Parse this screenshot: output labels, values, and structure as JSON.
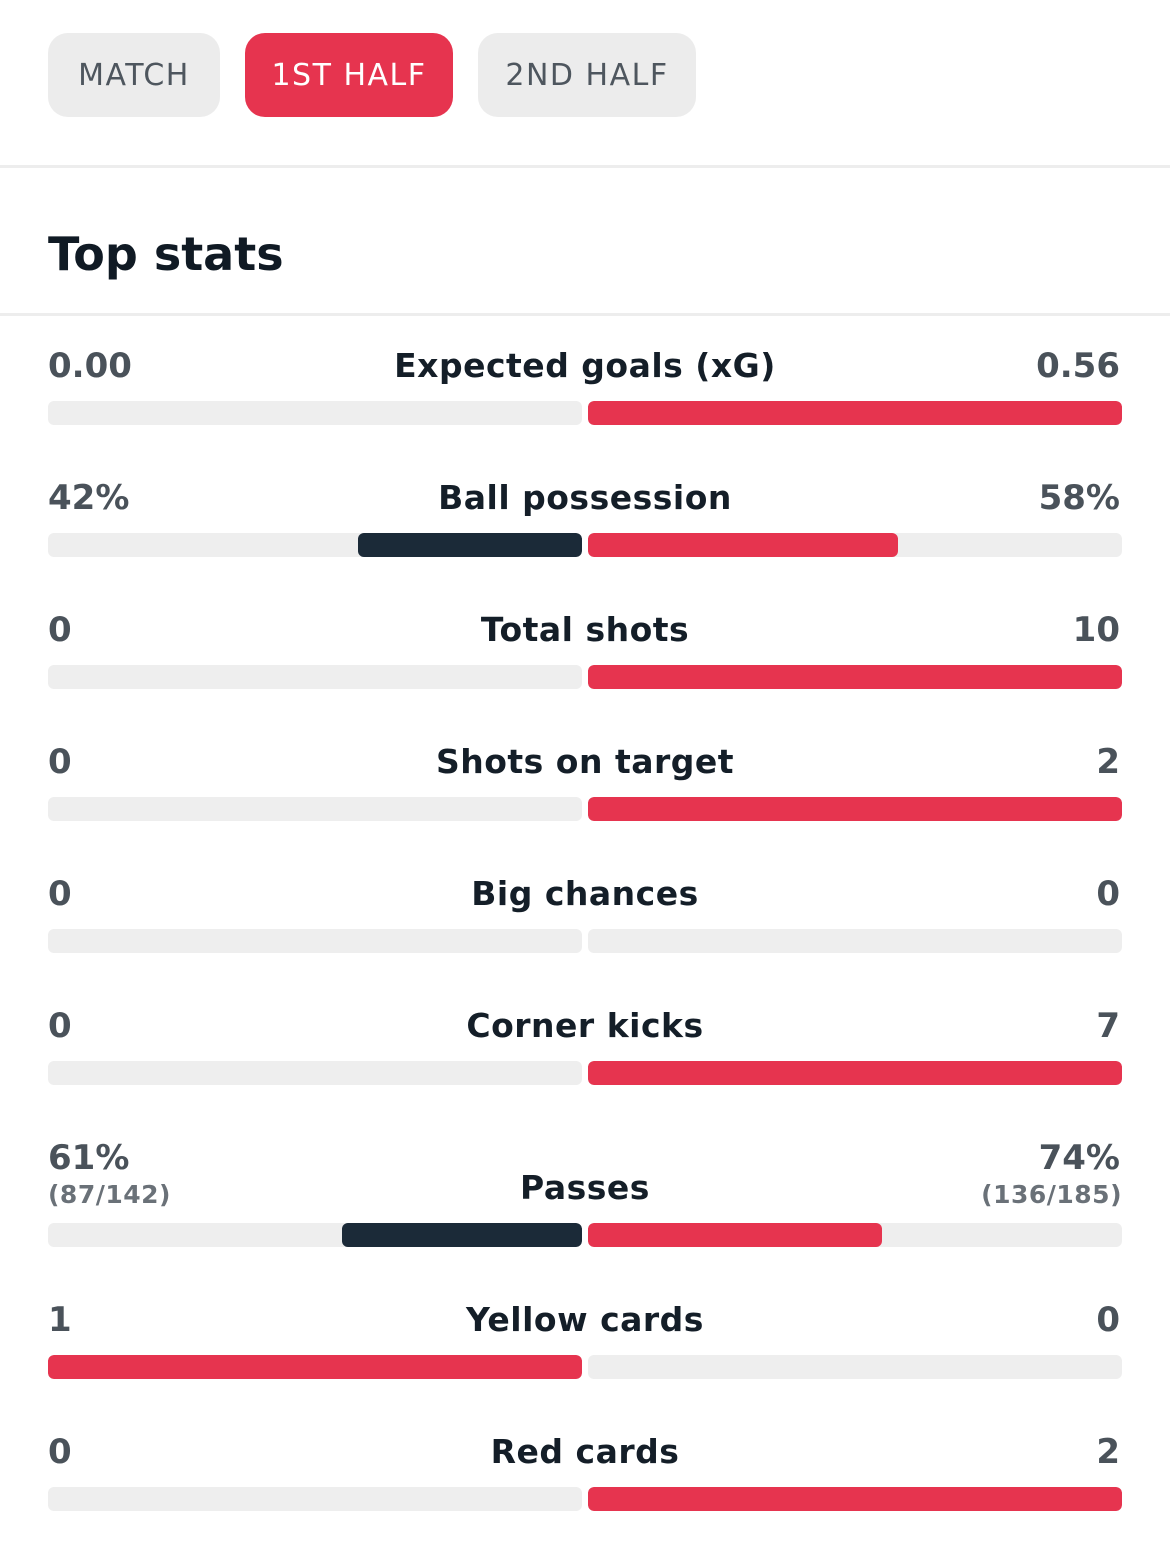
{
  "tabs": [
    {
      "label": "MATCH",
      "active": false
    },
    {
      "label": "1ST HALF",
      "active": true
    },
    {
      "label": "2ND HALF",
      "active": false
    }
  ],
  "section_title": "Top stats",
  "colors": {
    "accent_red": "#e6344f",
    "dark_navy": "#1b2a38",
    "track_gray": "#eeeeee"
  },
  "stats": [
    {
      "name": "Expected goals (xG)",
      "left": "0.00",
      "right": "0.56",
      "left_fill": 0.0,
      "right_fill": 1.0,
      "left_color": "dark",
      "right_color": "red"
    },
    {
      "name": "Ball possession",
      "left": "42%",
      "right": "58%",
      "left_fill": 0.42,
      "right_fill": 0.58,
      "left_color": "dark",
      "right_color": "red"
    },
    {
      "name": "Total shots",
      "left": "0",
      "right": "10",
      "left_fill": 0.0,
      "right_fill": 1.0,
      "left_color": "dark",
      "right_color": "red"
    },
    {
      "name": "Shots on target",
      "left": "0",
      "right": "2",
      "left_fill": 0.0,
      "right_fill": 1.0,
      "left_color": "dark",
      "right_color": "red"
    },
    {
      "name": "Big chances",
      "left": "0",
      "right": "0",
      "left_fill": 0.0,
      "right_fill": 0.0,
      "left_color": "dark",
      "right_color": "red"
    },
    {
      "name": "Corner kicks",
      "left": "0",
      "right": "7",
      "left_fill": 0.0,
      "right_fill": 1.0,
      "left_color": "dark",
      "right_color": "red"
    },
    {
      "name": "Passes",
      "left": "61%",
      "right": "74%",
      "left_sub": "(87/142)",
      "right_sub": "(136/185)",
      "left_fill": 0.45,
      "right_fill": 0.55,
      "left_color": "dark",
      "right_color": "red"
    },
    {
      "name": "Yellow cards",
      "left": "1",
      "right": "0",
      "left_fill": 1.0,
      "right_fill": 0.0,
      "left_color": "red",
      "right_color": "dark"
    },
    {
      "name": "Red cards",
      "left": "0",
      "right": "2",
      "left_fill": 0.0,
      "right_fill": 1.0,
      "left_color": "dark",
      "right_color": "red"
    }
  ]
}
